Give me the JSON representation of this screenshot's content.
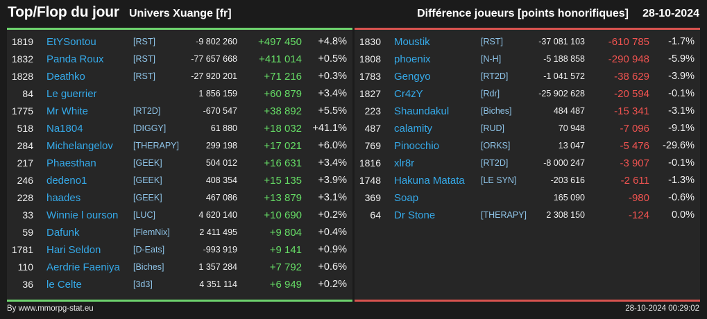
{
  "header": {
    "title": "Top/Flop du jour",
    "universe": "Univers Xuange [fr]",
    "metric": "Différence joueurs [points honorifiques]",
    "date": "28-10-2024"
  },
  "colors": {
    "positive": "#66dd66",
    "negative": "#ef5350",
    "name": "#35a9e8",
    "top_bar": "#6ed36e",
    "flop_bar": "#d9534f"
  },
  "top": [
    {
      "rank": "1819",
      "name": "EtYSontou",
      "alliance": "[RST]",
      "points": "-9 802 260",
      "diff": "+497 450",
      "pct": "+4.8%"
    },
    {
      "rank": "1832",
      "name": "Panda Roux",
      "alliance": "[RST]",
      "points": "-77 657 668",
      "diff": "+411 014",
      "pct": "+0.5%"
    },
    {
      "rank": "1828",
      "name": "Deathko",
      "alliance": "[RST]",
      "points": "-27 920 201",
      "diff": "+71 216",
      "pct": "+0.3%"
    },
    {
      "rank": "84",
      "name": "Le guerrier",
      "alliance": "",
      "points": "1 856 159",
      "diff": "+60 879",
      "pct": "+3.4%"
    },
    {
      "rank": "1775",
      "name": "Mr White",
      "alliance": "[RT2D]",
      "points": "-670 547",
      "diff": "+38 892",
      "pct": "+5.5%"
    },
    {
      "rank": "518",
      "name": "Na1804",
      "alliance": "[DIGGY]",
      "points": "61 880",
      "diff": "+18 032",
      "pct": "+41.1%"
    },
    {
      "rank": "284",
      "name": "Michelangelov",
      "alliance": "[THERAPY]",
      "points": "299 198",
      "diff": "+17 021",
      "pct": "+6.0%"
    },
    {
      "rank": "217",
      "name": "Phaesthan",
      "alliance": "[GEEK]",
      "points": "504 012",
      "diff": "+16 631",
      "pct": "+3.4%"
    },
    {
      "rank": "246",
      "name": "dedeno1",
      "alliance": "[GEEK]",
      "points": "408 354",
      "diff": "+15 135",
      "pct": "+3.9%"
    },
    {
      "rank": "228",
      "name": "haades",
      "alliance": "[GEEK]",
      "points": "467 086",
      "diff": "+13 879",
      "pct": "+3.1%"
    },
    {
      "rank": "33",
      "name": "Winnie l ourson",
      "alliance": "[LUC]",
      "points": "4 620 140",
      "diff": "+10 690",
      "pct": "+0.2%"
    },
    {
      "rank": "59",
      "name": "Dafunk",
      "alliance": "[FlemNix]",
      "points": "2 411 495",
      "diff": "+9 804",
      "pct": "+0.4%"
    },
    {
      "rank": "1781",
      "name": "Hari Seldon",
      "alliance": "[D-Eats]",
      "points": "-993 919",
      "diff": "+9 141",
      "pct": "+0.9%"
    },
    {
      "rank": "110",
      "name": "Aerdrie Faeniya",
      "alliance": "[Biches]",
      "points": "1 357 284",
      "diff": "+7 792",
      "pct": "+0.6%"
    },
    {
      "rank": "36",
      "name": "le Celte",
      "alliance": "[3d3]",
      "points": "4 351 114",
      "diff": "+6 949",
      "pct": "+0.2%"
    }
  ],
  "flop": [
    {
      "rank": "1830",
      "name": "Moustik",
      "alliance": "[RST]",
      "points": "-37 081 103",
      "diff": "-610 785",
      "pct": "-1.7%"
    },
    {
      "rank": "1808",
      "name": "phoenix",
      "alliance": "[N-H]",
      "points": "-5 188 858",
      "diff": "-290 948",
      "pct": "-5.9%"
    },
    {
      "rank": "1783",
      "name": "Gengyo",
      "alliance": "[RT2D]",
      "points": "-1 041 572",
      "diff": "-38 629",
      "pct": "-3.9%"
    },
    {
      "rank": "1827",
      "name": "Cr4zY",
      "alliance": "[Rdr]",
      "points": "-25 902 628",
      "diff": "-20 594",
      "pct": "-0.1%"
    },
    {
      "rank": "223",
      "name": "Shaundakul",
      "alliance": "[Biches]",
      "points": "484 487",
      "diff": "-15 341",
      "pct": "-3.1%"
    },
    {
      "rank": "487",
      "name": "calamity",
      "alliance": "[RUD]",
      "points": "70 948",
      "diff": "-7 096",
      "pct": "-9.1%"
    },
    {
      "rank": "769",
      "name": "Pinocchio",
      "alliance": "[ORKS]",
      "points": "13 047",
      "diff": "-5 476",
      "pct": "-29.6%"
    },
    {
      "rank": "1816",
      "name": "xlr8r",
      "alliance": "[RT2D]",
      "points": "-8 000 247",
      "diff": "-3 907",
      "pct": "-0.1%"
    },
    {
      "rank": "1748",
      "name": "Hakuna Matata",
      "alliance": "[LE SYN]",
      "points": "-203 616",
      "diff": "-2 611",
      "pct": "-1.3%"
    },
    {
      "rank": "369",
      "name": "Soap",
      "alliance": "",
      "points": "165 090",
      "diff": "-980",
      "pct": "-0.6%"
    },
    {
      "rank": "64",
      "name": "Dr Stone",
      "alliance": "[THERAPY]",
      "points": "2 308 150",
      "diff": "-124",
      "pct": "0.0%"
    }
  ],
  "footer": {
    "credit": "By www.mmorpg-stat.eu",
    "timestamp": "28-10-2024 00:29:02"
  }
}
